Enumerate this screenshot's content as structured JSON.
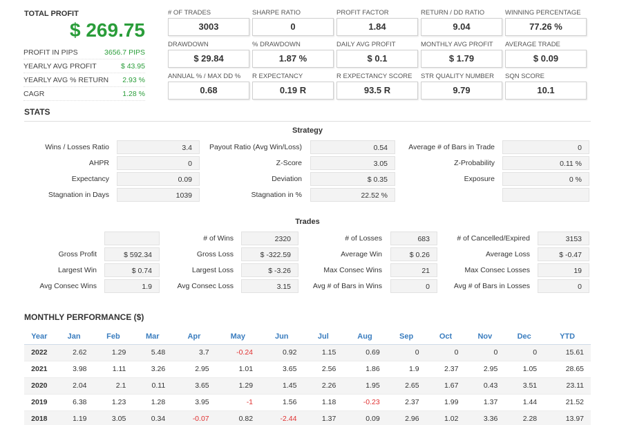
{
  "summary": {
    "total_profit_label": "TOTAL PROFIT",
    "total_profit_value": "$ 269.75",
    "rows": [
      {
        "label": "PROFIT IN PIPS",
        "value": "3656.7 PIPS"
      },
      {
        "label": "YEARLY AVG PROFIT",
        "value": "$ 43.95"
      },
      {
        "label": "YEARLY AVG % RETURN",
        "value": "2.93 %"
      },
      {
        "label": "CAGR",
        "value": "1.28 %"
      }
    ]
  },
  "metrics": [
    {
      "label": "# OF TRADES",
      "value": "3003"
    },
    {
      "label": "SHARPE RATIO",
      "value": "0"
    },
    {
      "label": "PROFIT FACTOR",
      "value": "1.84"
    },
    {
      "label": "RETURN / DD RATIO",
      "value": "9.04"
    },
    {
      "label": "WINNING PERCENTAGE",
      "value": "77.26 %"
    },
    {
      "label": "DRAWDOWN",
      "value": "$ 29.84"
    },
    {
      "label": "% DRAWDOWN",
      "value": "1.87 %"
    },
    {
      "label": "DAILY AVG PROFIT",
      "value": "$ 0.1"
    },
    {
      "label": "MONTHLY AVG PROFIT",
      "value": "$ 1.79"
    },
    {
      "label": "AVERAGE TRADE",
      "value": "$ 0.09"
    },
    {
      "label": "ANNUAL % / MAX DD %",
      "value": "0.68"
    },
    {
      "label": "R EXPECTANCY",
      "value": "0.19 R"
    },
    {
      "label": "R EXPECTANCY SCORE",
      "value": "93.5 R"
    },
    {
      "label": "STR QUALITY NUMBER",
      "value": "9.79"
    },
    {
      "label": "SQN SCORE",
      "value": "10.1"
    }
  ],
  "stats_title": "STATS",
  "strategy": {
    "title": "Strategy",
    "rows": [
      [
        {
          "label": "Wins / Losses Ratio",
          "value": "3.4"
        },
        {
          "label": "Payout Ratio (Avg Win/Loss)",
          "value": "0.54"
        },
        {
          "label": "Average # of Bars in Trade",
          "value": "0"
        }
      ],
      [
        {
          "label": "AHPR",
          "value": "0"
        },
        {
          "label": "Z-Score",
          "value": "3.05"
        },
        {
          "label": "Z-Probability",
          "value": "0.11 %"
        }
      ],
      [
        {
          "label": "Expectancy",
          "value": "0.09"
        },
        {
          "label": "Deviation",
          "value": "$ 0.35"
        },
        {
          "label": "Exposure",
          "value": "0 %"
        }
      ],
      [
        {
          "label": "Stagnation in Days",
          "value": "1039"
        },
        {
          "label": "Stagnation in %",
          "value": "22.52 %"
        },
        {
          "label": "",
          "value": ""
        }
      ]
    ]
  },
  "trades": {
    "title": "Trades",
    "rows": [
      [
        {
          "label": "",
          "value": ""
        },
        {
          "label": "# of Wins",
          "value": "2320"
        },
        {
          "label": "# of Losses",
          "value": "683"
        },
        {
          "label": "# of Cancelled/Expired",
          "value": "3153"
        }
      ],
      [
        {
          "label": "Gross Profit",
          "value": "$ 592.34"
        },
        {
          "label": "Gross Loss",
          "value": "$ -322.59"
        },
        {
          "label": "Average Win",
          "value": "$ 0.26"
        },
        {
          "label": "Average Loss",
          "value": "$ -0.47"
        }
      ],
      [
        {
          "label": "Largest Win",
          "value": "$ 0.74"
        },
        {
          "label": "Largest Loss",
          "value": "$ -3.26"
        },
        {
          "label": "Max Consec Wins",
          "value": "21"
        },
        {
          "label": "Max Consec Losses",
          "value": "19"
        }
      ],
      [
        {
          "label": "Avg Consec Wins",
          "value": "1.9"
        },
        {
          "label": "Avg Consec Loss",
          "value": "3.15"
        },
        {
          "label": "Avg # of Bars in Wins",
          "value": "0"
        },
        {
          "label": "Avg # of Bars in Losses",
          "value": "0"
        }
      ]
    ]
  },
  "monthly": {
    "title": "MONTHLY PERFORMANCE ($)",
    "headers": [
      "Year",
      "Jan",
      "Feb",
      "Mar",
      "Apr",
      "May",
      "Jun",
      "Jul",
      "Aug",
      "Sep",
      "Oct",
      "Nov",
      "Dec",
      "YTD"
    ],
    "rows": [
      [
        "2022",
        "2.62",
        "1.29",
        "5.48",
        "3.7",
        "-0.24",
        "0.92",
        "1.15",
        "0.69",
        "0",
        "0",
        "0",
        "0",
        "15.61"
      ],
      [
        "2021",
        "3.98",
        "1.11",
        "3.26",
        "2.95",
        "1.01",
        "3.65",
        "2.56",
        "1.86",
        "1.9",
        "2.37",
        "2.95",
        "1.05",
        "28.65"
      ],
      [
        "2020",
        "2.04",
        "2.1",
        "0.11",
        "3.65",
        "1.29",
        "1.45",
        "2.26",
        "1.95",
        "2.65",
        "1.67",
        "0.43",
        "3.51",
        "23.11"
      ],
      [
        "2019",
        "6.38",
        "1.23",
        "1.28",
        "3.95",
        "-1",
        "1.56",
        "1.18",
        "-0.23",
        "2.37",
        "1.99",
        "1.37",
        "1.44",
        "21.52"
      ],
      [
        "2018",
        "1.19",
        "3.05",
        "0.34",
        "-0.07",
        "0.82",
        "-2.44",
        "1.37",
        "0.09",
        "2.96",
        "1.02",
        "3.36",
        "2.28",
        "13.97"
      ]
    ]
  },
  "colors": {
    "positive": "#2a9d3a",
    "negative": "#e03030",
    "header_blue": "#3a7dbf"
  }
}
